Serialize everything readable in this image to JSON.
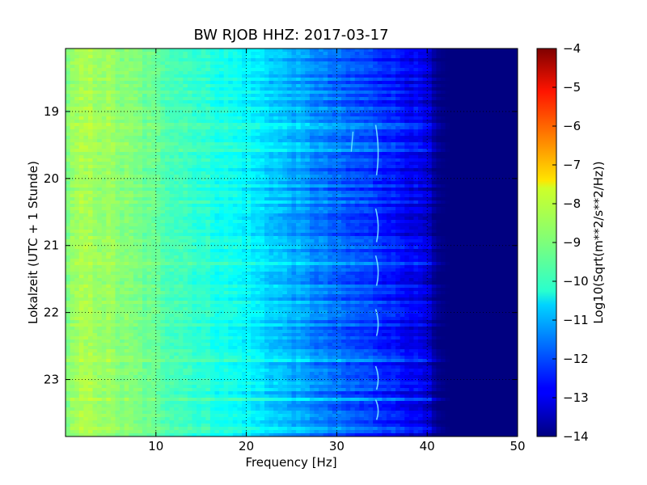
{
  "chart_data": {
    "type": "heatmap",
    "title": "BW RJOB HHZ: 2017-03-17",
    "xlabel": "Frequency [Hz]",
    "ylabel": "Lokalzeit (UTC + 1 Stunde)",
    "xlim": [
      0,
      50
    ],
    "ylim_hours_top_to_bottom": [
      18.06,
      23.85
    ],
    "x_ticks": [
      10,
      20,
      30,
      40,
      50
    ],
    "y_ticks": [
      19,
      20,
      21,
      22,
      23
    ],
    "grid": true,
    "colormap": "jet",
    "colorbar": {
      "label": "Log10(Sqrt(m**2/s**2/Hz))",
      "range": [
        -14,
        -4
      ],
      "ticks": [
        -4,
        -5,
        -6,
        -7,
        -8,
        -9,
        -10,
        -11,
        -12,
        -13,
        -14
      ]
    },
    "frequency_profile": {
      "frequency_hz": [
        0,
        2,
        4,
        6,
        8,
        10,
        12,
        14,
        16,
        18,
        20,
        22,
        24,
        26,
        28,
        30,
        32,
        34,
        36,
        38,
        40,
        41,
        42,
        44,
        46,
        48,
        50
      ],
      "log10_amplitude": [
        -9.0,
        -8.6,
        -8.7,
        -8.9,
        -9.1,
        -9.3,
        -9.5,
        -9.7,
        -9.9,
        -10.1,
        -10.3,
        -10.6,
        -10.9,
        -11.2,
        -11.5,
        -11.8,
        -12.0,
        -12.2,
        -12.5,
        -12.8,
        -13.2,
        -13.9,
        -14.0,
        -14.0,
        -14.0,
        -14.0,
        -14.0
      ]
    },
    "annotations": {
      "narrowband_line_hz": 34.5,
      "secondary_line_hz": 31.8
    }
  }
}
